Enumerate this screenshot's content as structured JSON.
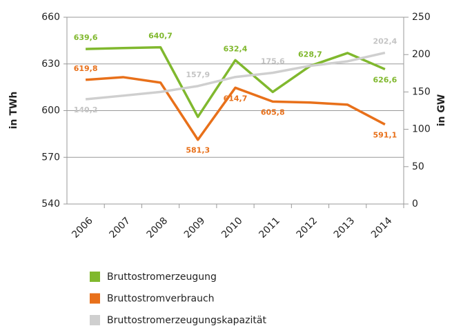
{
  "chart_data": {
    "type": "line",
    "categories": [
      "2006",
      "2007",
      "2008",
      "2009",
      "2010",
      "2011",
      "2012",
      "2013",
      "2014"
    ],
    "ylabel": "in TWh",
    "y2label": "in GW",
    "ylim": [
      540,
      660
    ],
    "yticks": [
      540,
      570,
      600,
      630,
      660
    ],
    "y2lim": [
      0,
      250
    ],
    "y2ticks": [
      0,
      50,
      100,
      150,
      200,
      250
    ],
    "grid": true,
    "series": [
      {
        "name": "Bruttostromerzeugung",
        "color": "#80b82e",
        "values": [
          639.6,
          640.2,
          640.7,
          596,
          632.4,
          612,
          628.7,
          637,
          626.6
        ],
        "value_labels": [
          "639,6",
          null,
          "640,7",
          null,
          "632,4",
          null,
          "628,7",
          null,
          "626,6"
        ]
      },
      {
        "name": "Bruttostromverbrauch",
        "color": "#e8701a",
        "values": [
          619.8,
          621.5,
          618,
          581.3,
          614.7,
          605.8,
          605.2,
          603.8,
          591.1
        ],
        "value_labels": [
          "619,8",
          null,
          null,
          "581,3",
          "614,7",
          "605,8",
          null,
          null,
          "591,1"
        ]
      },
      {
        "name": "Bruttostromerzeugungskapazität",
        "color": "#cfcfcf",
        "axis": "y2",
        "values": [
          140.2,
          145,
          150,
          157.9,
          170,
          175.6,
          185,
          191,
          202.4
        ],
        "value_labels": [
          "140,2",
          null,
          null,
          "157,9",
          null,
          "175,6",
          null,
          null,
          "202,4"
        ]
      }
    ]
  }
}
